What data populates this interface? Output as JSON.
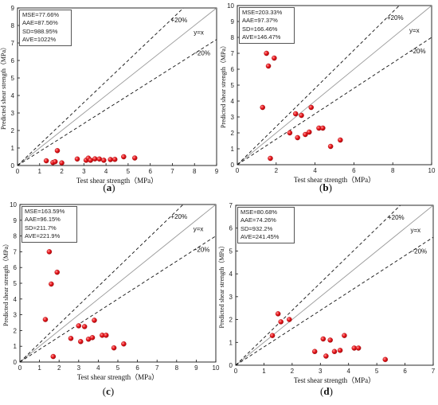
{
  "chart_data": [
    {
      "type": "scatter",
      "panel_label": "a",
      "xlabel": "Test shear strength（MPa）",
      "ylabel": "Predicted shear strength（MPa）",
      "xlim": [
        0,
        9
      ],
      "ylim": [
        0,
        9
      ],
      "xticks": [
        "0",
        "1",
        "2",
        "3",
        "4",
        "5",
        "6",
        "7",
        "8",
        "9"
      ],
      "yticks": [
        "0",
        "1",
        "2",
        "3",
        "4",
        "5",
        "6",
        "7",
        "8",
        "9"
      ],
      "stats": [
        "MSE=77.66%",
        "AAE=87.56%",
        "SD=988.95%",
        "AVE=1022%"
      ],
      "line_labels": {
        "upper": "+20%",
        "identity": "y=x",
        "lower": "−20%"
      },
      "points": [
        [
          1.3,
          0.27
        ],
        [
          1.6,
          0.17
        ],
        [
          1.7,
          0.22
        ],
        [
          1.8,
          0.85
        ],
        [
          2.0,
          0.15
        ],
        [
          2.7,
          0.37
        ],
        [
          3.1,
          0.3
        ],
        [
          3.2,
          0.42
        ],
        [
          3.3,
          0.3
        ],
        [
          3.5,
          0.38
        ],
        [
          3.7,
          0.37
        ],
        [
          3.9,
          0.3
        ],
        [
          4.2,
          0.34
        ],
        [
          4.4,
          0.35
        ],
        [
          4.8,
          0.5
        ],
        [
          5.3,
          0.43
        ]
      ]
    },
    {
      "type": "scatter",
      "panel_label": "b",
      "xlabel": "Test shear strength（MPa）",
      "ylabel": "Predicted shear strength（MPa）",
      "xlim": [
        0,
        10
      ],
      "ylim": [
        0,
        10
      ],
      "xticks": [
        "0",
        "2",
        "4",
        "6",
        "8",
        "10"
      ],
      "yticks": [
        "0",
        "1",
        "2",
        "3",
        "4",
        "5",
        "6",
        "7",
        "8",
        "9",
        "10"
      ],
      "stats": [
        "MSE=203.33%",
        "AAE=97.37%",
        "SD=166.46%",
        "AVE=146.47%"
      ],
      "line_labels": {
        "upper": "+20%",
        "identity": "y=x",
        "lower": "−20%"
      },
      "points": [
        [
          1.3,
          3.6
        ],
        [
          1.5,
          7.0
        ],
        [
          1.6,
          6.2
        ],
        [
          1.7,
          0.4
        ],
        [
          1.9,
          6.7
        ],
        [
          2.7,
          2.0
        ],
        [
          3.0,
          3.2
        ],
        [
          3.1,
          1.7
        ],
        [
          3.3,
          3.1
        ],
        [
          3.5,
          1.9
        ],
        [
          3.7,
          2.05
        ],
        [
          3.8,
          3.6
        ],
        [
          4.2,
          2.3
        ],
        [
          4.4,
          2.3
        ],
        [
          4.8,
          1.15
        ],
        [
          5.3,
          1.55
        ]
      ]
    },
    {
      "type": "scatter",
      "panel_label": "c",
      "xlabel": "Test shear strength（MPa）",
      "ylabel": "Predicted shear strength（MPa）",
      "xlim": [
        0,
        10
      ],
      "ylim": [
        0,
        10
      ],
      "xticks": [
        "0",
        "1",
        "2",
        "3",
        "4",
        "5",
        "6",
        "7",
        "8",
        "9",
        "10"
      ],
      "yticks": [
        "0",
        "1",
        "2",
        "3",
        "4",
        "5",
        "6",
        "7",
        "8",
        "9",
        "10"
      ],
      "stats": [
        "MSE=163.59%",
        "AAE=96.15%",
        "SD=211.7%",
        "AVE=221.9%"
      ],
      "line_labels": {
        "upper": "+20%",
        "identity": "y=x",
        "lower": "−20%"
      },
      "points": [
        [
          1.3,
          2.7
        ],
        [
          1.5,
          7.0
        ],
        [
          1.6,
          4.95
        ],
        [
          1.7,
          0.35
        ],
        [
          1.9,
          5.7
        ],
        [
          2.6,
          1.5
        ],
        [
          3.0,
          2.3
        ],
        [
          3.1,
          1.3
        ],
        [
          3.3,
          2.25
        ],
        [
          3.5,
          1.45
        ],
        [
          3.7,
          1.55
        ],
        [
          3.8,
          2.65
        ],
        [
          4.2,
          1.7
        ],
        [
          4.4,
          1.7
        ],
        [
          4.8,
          0.9
        ],
        [
          5.3,
          1.15
        ]
      ]
    },
    {
      "type": "scatter",
      "panel_label": "d",
      "xlabel": "Test shear strength（MPa）",
      "ylabel": "Predicted shear strength（MPa）",
      "xlim": [
        0,
        7
      ],
      "ylim": [
        0,
        7
      ],
      "xticks": [
        "0",
        "1",
        "2",
        "3",
        "4",
        "5",
        "6",
        "7"
      ],
      "yticks": [
        "0",
        "1",
        "2",
        "3",
        "4",
        "5",
        "6",
        "7"
      ],
      "stats": [
        "MSE=80.68%",
        "AAE=74.26%",
        "SD=932.2%",
        "AVE=241.45%"
      ],
      "line_labels": {
        "upper": "+20%",
        "identity": "y=x",
        "lower": "−20%"
      },
      "points": [
        [
          1.3,
          1.3
        ],
        [
          1.5,
          2.25
        ],
        [
          1.6,
          1.9
        ],
        [
          1.9,
          2.0
        ],
        [
          2.8,
          0.6
        ],
        [
          3.1,
          1.15
        ],
        [
          3.2,
          0.4
        ],
        [
          3.35,
          1.1
        ],
        [
          3.5,
          0.6
        ],
        [
          3.7,
          0.65
        ],
        [
          3.85,
          1.3
        ],
        [
          4.2,
          0.75
        ],
        [
          4.35,
          0.75
        ],
        [
          5.3,
          0.25
        ]
      ]
    }
  ],
  "colors": {
    "point": "#e8141a",
    "point_highlight": "#ff8a8a",
    "identity_line": "#9a9a9a",
    "band_line": "#111111",
    "axis": "#111111"
  }
}
